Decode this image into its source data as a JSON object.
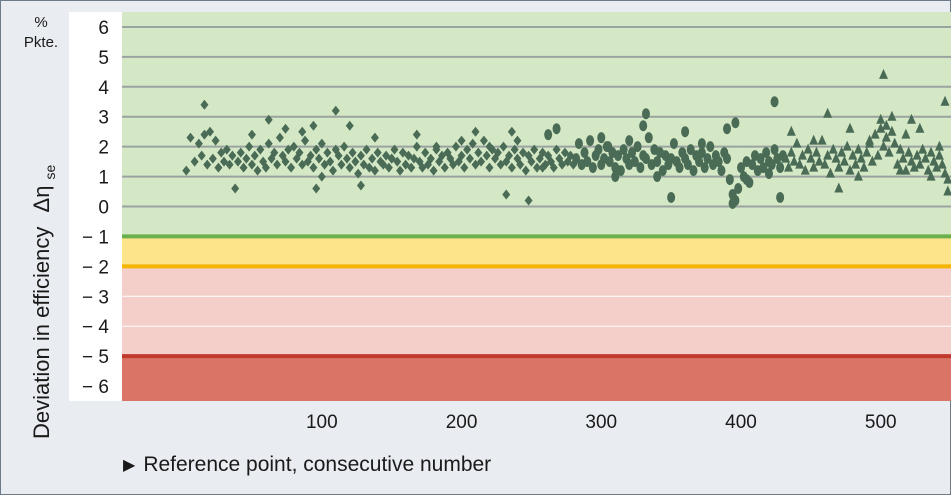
{
  "chart_data": {
    "type": "scatter",
    "title": "",
    "xlabel": "Reference point, consecutive number",
    "ylabel": "Deviation in efficiency",
    "ylabel_symbol": "Δη",
    "ylabel_subscript": "se",
    "yunit_line1": "%",
    "yunit_line2": "Pkte.",
    "xlim": [
      0,
      550
    ],
    "ylim": [
      -6.5,
      6.5
    ],
    "x_ticks": [
      100,
      200,
      300,
      400,
      500
    ],
    "y_ticks": [
      6,
      5,
      4,
      3,
      2,
      1,
      0,
      -1,
      -2,
      -3,
      -4,
      -5,
      -6
    ],
    "y_tick_labels": [
      "6",
      "5",
      "4",
      "3",
      "2",
      "1",
      "0",
      "− 1",
      "− 2",
      "− 3",
      "− 4",
      "− 5",
      "− 6"
    ],
    "grid": true,
    "bands": [
      {
        "from": -1,
        "to": 6.5,
        "color": "#d4e8c6"
      },
      {
        "from": -2,
        "to": -1,
        "color": "#fde48a"
      },
      {
        "from": -5,
        "to": -2,
        "color": "#f4cfca"
      },
      {
        "from": -6.5,
        "to": -5,
        "color": "#d97466"
      }
    ],
    "band_lines": [
      {
        "y": -1,
        "color": "#6ab04c"
      },
      {
        "y": -2,
        "color": "#f4b400"
      },
      {
        "y": -5,
        "color": "#c0392b"
      }
    ],
    "series": [
      {
        "marker": "diamond",
        "color": "#4a6b55",
        "x": [
          3,
          6,
          9,
          12,
          14,
          16,
          18,
          20,
          22,
          24,
          26,
          28,
          30,
          32,
          34,
          36,
          38,
          40,
          42,
          44,
          46,
          48,
          50,
          52,
          54,
          56,
          58,
          60,
          62,
          64,
          66,
          68,
          70,
          72,
          74,
          76,
          78,
          80,
          82,
          84,
          86,
          88,
          90,
          92,
          94,
          96,
          98,
          100,
          102,
          104,
          106,
          108,
          110,
          112,
          114,
          116,
          118,
          120,
          122,
          124,
          126,
          128,
          130,
          132,
          134,
          136,
          138,
          140,
          142,
          144,
          146,
          148,
          150,
          152,
          154,
          156,
          158,
          160,
          162,
          164,
          166,
          168,
          170,
          172,
          174,
          176,
          178,
          180,
          182,
          184,
          186,
          188,
          190,
          192,
          194,
          196,
          198,
          200,
          202,
          204,
          206,
          208,
          210,
          212,
          214,
          216,
          218,
          220,
          222,
          224,
          226,
          228,
          230,
          232,
          234,
          236,
          238,
          240,
          242,
          244,
          246,
          248,
          250,
          252,
          254,
          256,
          258,
          260,
          262,
          264,
          266,
          268,
          270,
          272,
          274,
          276,
          278,
          280,
          16,
          50,
          62,
          74,
          86,
          94,
          96,
          100,
          110,
          120,
          128,
          138,
          150,
          168,
          182,
          200,
          210,
          220,
          232,
          236,
          240,
          248,
          258
        ],
        "y": [
          1.2,
          2.3,
          1.5,
          2.1,
          1.7,
          2.4,
          1.4,
          2.5,
          1.6,
          2.2,
          1.3,
          1.8,
          1.5,
          1.9,
          1.4,
          1.7,
          0.6,
          1.5,
          1.8,
          1.3,
          1.6,
          2.0,
          1.4,
          1.7,
          1.2,
          1.9,
          1.5,
          1.3,
          2.1,
          1.6,
          1.8,
          1.4,
          2.3,
          1.7,
          1.5,
          1.9,
          1.3,
          2.0,
          1.6,
          1.8,
          1.4,
          2.2,
          1.5,
          1.7,
          1.3,
          1.9,
          1.6,
          2.1,
          1.4,
          1.8,
          1.5,
          1.2,
          1.9,
          1.7,
          1.4,
          2.0,
          1.6,
          1.3,
          1.8,
          1.5,
          1.1,
          1.7,
          1.4,
          1.9,
          1.3,
          1.6,
          1.2,
          1.8,
          1.5,
          1.4,
          1.7,
          1.3,
          1.6,
          1.9,
          1.5,
          1.2,
          1.8,
          1.4,
          1.7,
          1.3,
          1.6,
          2.0,
          1.5,
          1.3,
          1.8,
          1.4,
          1.6,
          1.2,
          1.9,
          1.5,
          1.7,
          1.3,
          1.8,
          1.6,
          1.4,
          2.0,
          1.5,
          1.7,
          1.3,
          1.9,
          1.6,
          2.1,
          1.4,
          1.8,
          1.5,
          2.2,
          1.7,
          1.3,
          1.9,
          1.6,
          1.8,
          1.4,
          2.0,
          1.5,
          1.7,
          1.3,
          1.9,
          1.6,
          1.4,
          1.8,
          1.2,
          1.7,
          1.5,
          1.9,
          1.3,
          1.6,
          1.8,
          1.4,
          1.7,
          1.5,
          1.3,
          1.9,
          1.6,
          1.4,
          1.8,
          1.5,
          1.7,
          1.4,
          3.4,
          2.4,
          2.9,
          2.6,
          2.5,
          2.7,
          0.6,
          1.0,
          3.2,
          2.7,
          0.7,
          2.3,
          1.6,
          2.4,
          2.0,
          2.2,
          2.5,
          2.0,
          0.4,
          2.5,
          2.2,
          0.2,
          1.3
        ]
      },
      {
        "marker": "circle",
        "color": "#4a6b55",
        "x": [
          282,
          284,
          286,
          288,
          290,
          292,
          294,
          296,
          298,
          300,
          302,
          304,
          306,
          308,
          310,
          312,
          314,
          316,
          318,
          320,
          322,
          324,
          326,
          328,
          330,
          332,
          334,
          336,
          338,
          340,
          342,
          344,
          346,
          348,
          350,
          352,
          354,
          356,
          358,
          360,
          362,
          364,
          366,
          368,
          370,
          372,
          374,
          376,
          378,
          380,
          382,
          384,
          386,
          388,
          390,
          392,
          394,
          396,
          398,
          400,
          402,
          404,
          406,
          408,
          410,
          412,
          414,
          416,
          418,
          420,
          422,
          424,
          426,
          428,
          430,
          300,
          305,
          310,
          320,
          330,
          332,
          340,
          350,
          360,
          372,
          390,
          396,
          404,
          420,
          424,
          428,
          268,
          262,
          394
        ],
        "y": [
          1.6,
          2.1,
          1.4,
          1.8,
          1.5,
          2.2,
          1.3,
          1.7,
          1.9,
          1.4,
          1.6,
          2.0,
          1.5,
          1.8,
          1.3,
          1.7,
          1.2,
          1.9,
          1.6,
          1.4,
          1.8,
          1.5,
          2.0,
          1.3,
          1.7,
          1.6,
          2.3,
          1.4,
          1.9,
          1.5,
          1.8,
          1.2,
          1.7,
          1.4,
          1.6,
          2.1,
          1.5,
          1.3,
          1.8,
          1.6,
          1.4,
          1.9,
          1.2,
          1.7,
          1.5,
          1.8,
          1.3,
          1.6,
          2.0,
          1.4,
          1.7,
          1.5,
          1.2,
          1.8,
          1.6,
          0.9,
          0.4,
          0.2,
          0.6,
          1.3,
          1.0,
          1.5,
          0.8,
          1.4,
          1.7,
          1.2,
          1.6,
          1.3,
          1.8,
          1.5,
          1.4,
          1.9,
          1.6,
          1.3,
          1.7,
          2.3,
          2.0,
          1.0,
          2.2,
          2.7,
          3.1,
          1.0,
          0.3,
          2.5,
          2.1,
          2.6,
          2.8,
          0.9,
          1.1,
          3.5,
          0.3,
          2.6,
          2.4,
          0.1
        ]
      },
      {
        "marker": "triangle",
        "color": "#4a6b55",
        "x": [
          432,
          434,
          436,
          438,
          440,
          442,
          444,
          446,
          448,
          450,
          452,
          454,
          456,
          458,
          460,
          462,
          464,
          466,
          468,
          470,
          472,
          474,
          476,
          478,
          480,
          482,
          484,
          486,
          488,
          490,
          492,
          494,
          496,
          498,
          500,
          502,
          504,
          506,
          508,
          510,
          512,
          514,
          516,
          518,
          520,
          522,
          524,
          526,
          528,
          530,
          532,
          534,
          536,
          538,
          540,
          542,
          544,
          546,
          548,
          436,
          452,
          462,
          470,
          478,
          484,
          492,
          500,
          502,
          504,
          508,
          514,
          518,
          522,
          528,
          536,
          542,
          546,
          548
        ],
        "y": [
          1.6,
          1.3,
          1.8,
          1.5,
          2.1,
          1.4,
          1.7,
          1.2,
          1.9,
          1.6,
          1.3,
          1.8,
          1.5,
          2.2,
          1.4,
          1.7,
          1.1,
          1.9,
          1.6,
          1.3,
          1.8,
          1.5,
          2.0,
          1.2,
          1.7,
          1.4,
          1.9,
          1.6,
          1.3,
          1.8,
          2.2,
          1.5,
          2.4,
          1.7,
          2.6,
          2.0,
          2.3,
          1.8,
          2.5,
          2.1,
          1.4,
          1.9,
          1.6,
          1.2,
          1.8,
          1.5,
          1.3,
          1.7,
          1.4,
          1.9,
          1.6,
          1.2,
          1.8,
          1.5,
          1.3,
          1.7,
          1.4,
          1.1,
          0.5,
          2.5,
          2.2,
          3.1,
          0.6,
          2.6,
          1.0,
          2.1,
          2.9,
          4.4,
          2.7,
          3.0,
          1.2,
          2.4,
          2.9,
          2.6,
          1.0,
          2.0,
          3.5,
          0.9
        ]
      }
    ]
  }
}
